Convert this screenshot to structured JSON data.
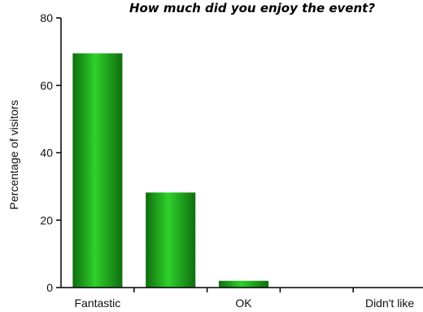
{
  "chart_data": {
    "type": "bar",
    "title": "How much did you enjoy the event?",
    "xlabel": "",
    "ylabel": "Percentage of visitors",
    "categories": [
      "Fantastic",
      "",
      "OK",
      "",
      "Didn't like"
    ],
    "values": [
      69.5,
      28.2,
      2.0,
      0,
      0
    ],
    "ylim": [
      0,
      80
    ],
    "yticks": [
      0,
      20,
      40,
      60,
      80
    ],
    "grid": false,
    "legend": "none",
    "colors": {
      "bar_dark": "#0f6e0f",
      "bar_light": "#2fd12a",
      "axis": "#000000"
    }
  }
}
